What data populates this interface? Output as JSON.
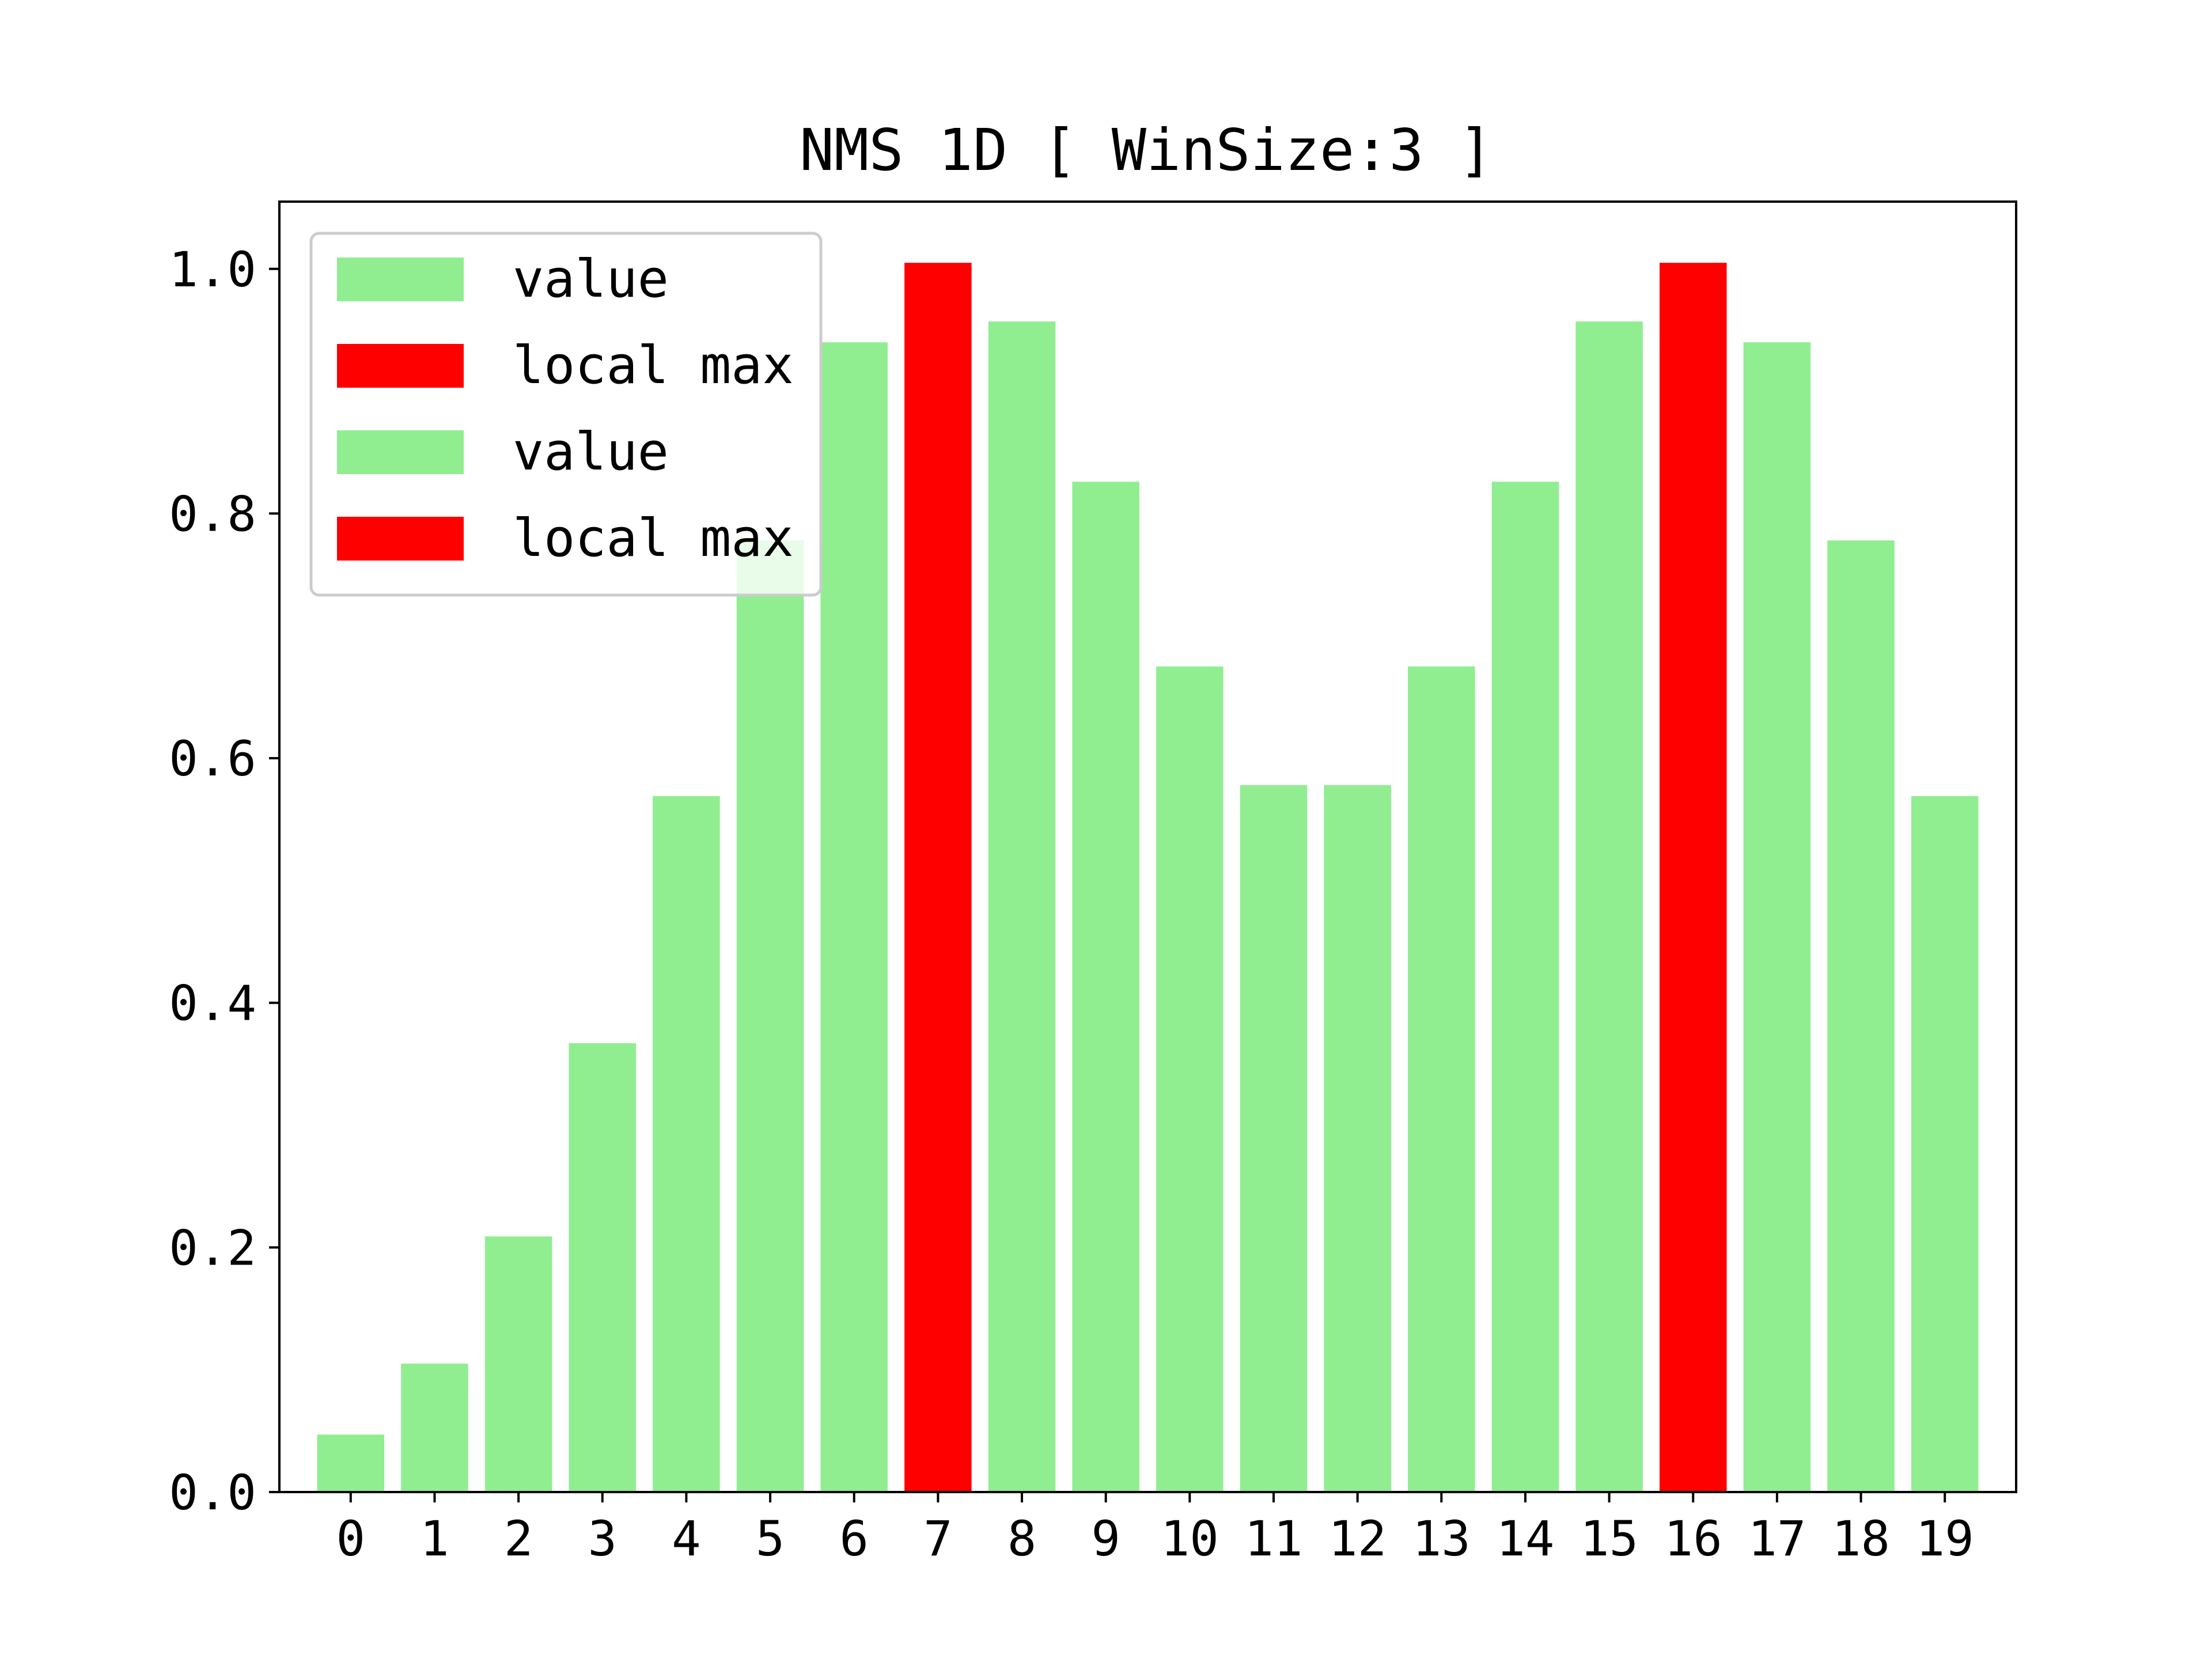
{
  "chart_data": {
    "type": "bar",
    "title": "NMS 1D [ WinSize:3 ]",
    "xlabel": "",
    "ylabel": "",
    "categories": [
      "0",
      "1",
      "2",
      "3",
      "4",
      "5",
      "6",
      "7",
      "8",
      "9",
      "10",
      "11",
      "12",
      "13",
      "14",
      "15",
      "16",
      "17",
      "18",
      "19"
    ],
    "series": [
      {
        "name": "value",
        "color": "#90ee90",
        "values": [
          0.047,
          0.105,
          0.209,
          0.367,
          0.569,
          0.778,
          0.94,
          0,
          0.957,
          0.826,
          0.675,
          0.578,
          0.578,
          0.675,
          0.826,
          0.957,
          0,
          0.94,
          0.778,
          0.569
        ]
      },
      {
        "name": "local max",
        "color": "#ff0000",
        "values": [
          0,
          0,
          0,
          0,
          0,
          0,
          0,
          1.005,
          0,
          0,
          0,
          0,
          0,
          0,
          0,
          0,
          1.005,
          0,
          0,
          0
        ]
      }
    ],
    "legend_entries": [
      {
        "label": "value",
        "color": "#90ee90"
      },
      {
        "label": "local max",
        "color": "#ff0000"
      },
      {
        "label": "value",
        "color": "#90ee90"
      },
      {
        "label": "local max",
        "color": "#ff0000"
      }
    ],
    "yticks": [
      "0.0",
      "0.2",
      "0.4",
      "0.6",
      "0.8",
      "1.0"
    ],
    "ylim": [
      0,
      1.055
    ],
    "grid": false,
    "legend_position": "upper-left"
  }
}
